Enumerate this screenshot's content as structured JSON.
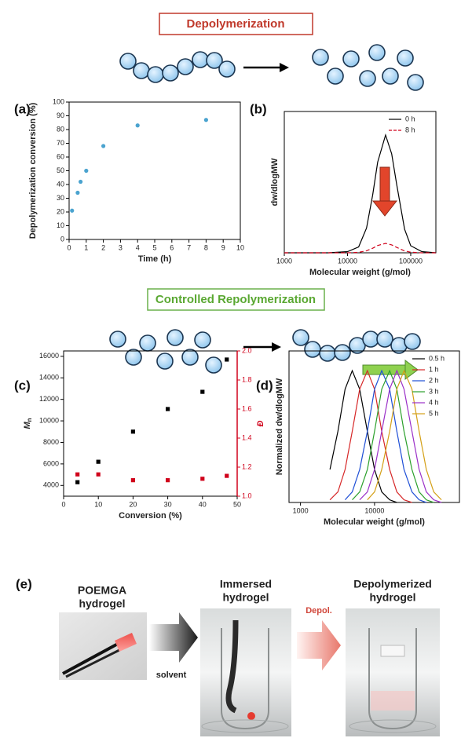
{
  "depolymerization_banner": "Depolymerization",
  "repolymerization_banner": "Controlled Repolymerization",
  "chart_data": [
    {
      "type": "scatter",
      "panel_label": "(a)",
      "x_label": "Time (h)",
      "y_label": "Depolymerization conversion (%)",
      "xlim": [
        0,
        10
      ],
      "xticks": [
        0,
        1,
        2,
        3,
        4,
        5,
        6,
        7,
        8,
        9,
        10
      ],
      "ylim": [
        0,
        100
      ],
      "yticks": [
        0,
        10,
        20,
        30,
        40,
        50,
        60,
        70,
        80,
        90,
        100
      ],
      "series": [
        {
          "color": "#4aa3cf",
          "marker": "circle",
          "x": [
            0.17,
            0.5,
            0.67,
            1,
            2,
            4,
            8
          ],
          "values": [
            21,
            34,
            42,
            50,
            68,
            83,
            87
          ]
        }
      ]
    },
    {
      "type": "line",
      "panel_label": "(b)",
      "x_label": "Molecular weight (g/mol)",
      "y_label": "dw/dlogMW",
      "x_scale": "log",
      "xlim": [
        1000,
        250000
      ],
      "xticks": [
        1000,
        10000,
        100000
      ],
      "ylim": [
        0,
        1.2
      ],
      "legend": "top-right",
      "x": [
        1000,
        2000,
        5000,
        10000,
        15000,
        20000,
        25000,
        30000,
        40000,
        50000,
        60000,
        80000,
        100000,
        150000,
        250000
      ],
      "series": [
        {
          "name": "0 h",
          "color": "#000000",
          "dash": false,
          "values": [
            0,
            0,
            0,
            0.01,
            0.05,
            0.21,
            0.49,
            0.77,
            1.0,
            0.84,
            0.58,
            0.2,
            0.06,
            0.01,
            0
          ]
        },
        {
          "name": "8 h",
          "color": "#d0021b",
          "dash": true,
          "values": [
            0,
            0,
            0,
            0,
            0.004,
            0.017,
            0.039,
            0.062,
            0.08,
            0.067,
            0.046,
            0.016,
            0.005,
            0,
            0
          ]
        }
      ]
    },
    {
      "type": "scatter",
      "panel_label": "(c)",
      "x_label": "Conversion (%)",
      "y_label": "M",
      "y_label_sub": "n",
      "y2_label": "Đ",
      "y2_color": "#d0021b",
      "xlim": [
        0,
        50
      ],
      "xticks": [
        0,
        10,
        20,
        30,
        40,
        50
      ],
      "ylim": [
        3000,
        16500
      ],
      "yticks": [
        4000,
        6000,
        8000,
        10000,
        12000,
        14000,
        16000
      ],
      "y2lim": [
        1.0,
        2.0
      ],
      "y2ticks": [
        {
          "value": 1.0,
          "label": "1.0"
        },
        1.2,
        1.4,
        1.6,
        1.8,
        {
          "value": 2.0,
          "label": "2.0"
        }
      ],
      "series": [
        {
          "color": "#000000",
          "marker": "square",
          "x": [
            4,
            10,
            20,
            30,
            40,
            47
          ],
          "values": [
            4300,
            6200,
            9000,
            11100,
            12700,
            15700
          ]
        },
        {
          "color": "#d0021b",
          "marker": "square",
          "axis": "y2",
          "x": [
            4,
            10,
            20,
            30,
            40,
            47
          ],
          "values": [
            1.15,
            1.15,
            1.11,
            1.11,
            1.12,
            1.14
          ]
        }
      ]
    },
    {
      "type": "line",
      "panel_label": "(d)",
      "x_label": "Molecular weight (g/mol)",
      "y_label": "Normalized dw/dlogMW",
      "x_scale": "log",
      "xlim": [
        700,
        140000
      ],
      "xticks": [
        1000,
        10000
      ],
      "ylim": [
        0,
        1.15
      ],
      "legend": "top-right",
      "x": [
        2000,
        2500,
        3200,
        4000,
        5000,
        6300,
        8000,
        10000,
        12500,
        16000,
        20000,
        25000,
        32000,
        40000,
        50000,
        63000,
        80000
      ],
      "series": [
        {
          "name": "0.5 h",
          "color": "#000000",
          "dash": false,
          "values": [
            null,
            0.25,
            0.54,
            0.86,
            1,
            0.86,
            0.54,
            0.25,
            0.08,
            0.02,
            0,
            null,
            null,
            null,
            null,
            null,
            null
          ]
        },
        {
          "name": "1 h",
          "color": "#d62728",
          "dash": false,
          "values": [
            null,
            0.02,
            0.08,
            0.25,
            0.54,
            0.86,
            1,
            0.86,
            0.54,
            0.25,
            0.08,
            0.02,
            0,
            null,
            null,
            null,
            null
          ]
        },
        {
          "name": "2 h",
          "color": "#1f4fd6",
          "dash": false,
          "values": [
            null,
            null,
            null,
            0.02,
            0.08,
            0.25,
            0.54,
            0.86,
            1,
            0.86,
            0.54,
            0.25,
            0.08,
            0.02,
            0,
            null,
            null
          ]
        },
        {
          "name": "3 h",
          "color": "#2ca02c",
          "dash": false,
          "values": [
            null,
            null,
            null,
            null,
            0.02,
            0.08,
            0.25,
            0.54,
            0.86,
            1,
            0.86,
            0.54,
            0.25,
            0.08,
            0.02,
            0,
            null
          ]
        },
        {
          "name": "4 h",
          "color": "#9b30c8",
          "dash": false,
          "values": [
            null,
            null,
            null,
            null,
            null,
            0.02,
            0.08,
            0.25,
            0.54,
            0.86,
            1,
            0.86,
            0.54,
            0.25,
            0.08,
            0.02,
            0
          ]
        },
        {
          "name": "5 h",
          "color": "#d4a017",
          "dash": false,
          "values": [
            null,
            null,
            null,
            null,
            null,
            null,
            0.02,
            0.08,
            0.25,
            0.54,
            0.86,
            1,
            0.86,
            0.54,
            0.25,
            0.08,
            0.02
          ]
        }
      ]
    }
  ],
  "panel_e": {
    "label": "(e)",
    "photos": [
      {
        "title": [
          "POEMGA",
          "hydrogel"
        ]
      },
      {
        "title": [
          "Immersed",
          "hydrogel"
        ]
      },
      {
        "title": [
          "Depolymerized",
          "hydrogel"
        ]
      }
    ],
    "arrows": [
      "solvent",
      "Depol."
    ]
  }
}
